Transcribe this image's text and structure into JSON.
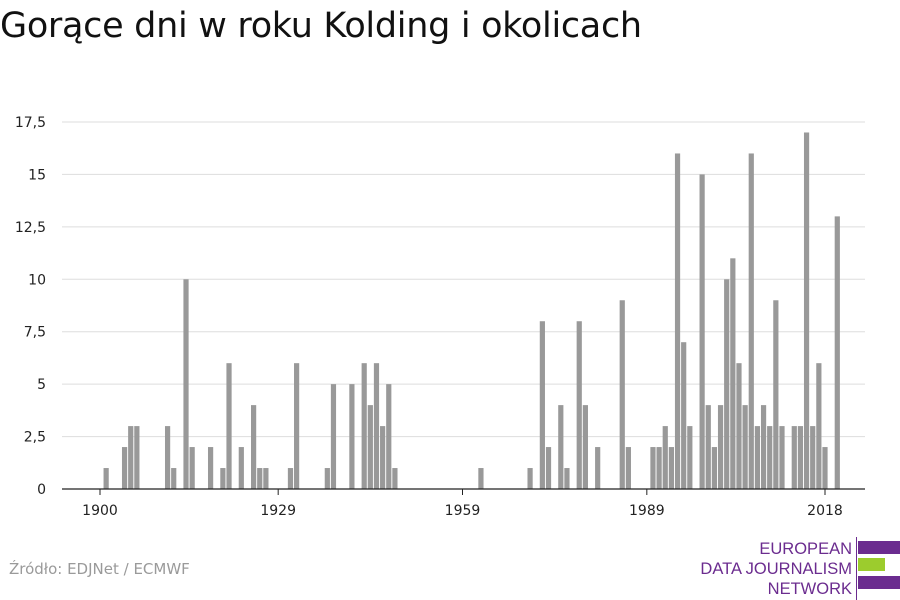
{
  "title": "Gorące dni w roku Kolding i okolicach",
  "source": "Źródło: EDJNet / ECMWF",
  "logo": {
    "lines": [
      "EUROPEAN",
      "DATA JOURNALISM",
      "NETWORK"
    ],
    "colors": {
      "purple": "#6b2c8f",
      "green": "#9ccc2d"
    }
  },
  "chart_data": {
    "type": "bar",
    "title": "Gorące dni w roku Kolding i okolicach",
    "xlabel": "",
    "ylabel": "",
    "bar_color": "#999999",
    "grid": true,
    "ylim": [
      0,
      17.5
    ],
    "yticks": [
      0,
      2.5,
      5,
      7.5,
      10,
      12.5,
      15,
      17.5
    ],
    "ytick_labels": [
      "0",
      "2,5",
      "5",
      "7,5",
      "10",
      "12,5",
      "15",
      "17,5"
    ],
    "xticks": [
      1900,
      1929,
      1959,
      1989,
      2018
    ],
    "xtick_labels": [
      "1900",
      "1929",
      "1959",
      "1989",
      "2018"
    ],
    "x": [
      1901,
      1904,
      1905,
      1906,
      1911,
      1912,
      1914,
      1915,
      1918,
      1920,
      1921,
      1923,
      1925,
      1926,
      1927,
      1931,
      1932,
      1937,
      1938,
      1941,
      1943,
      1944,
      1945,
      1946,
      1947,
      1948,
      1962,
      1970,
      1972,
      1973,
      1975,
      1976,
      1978,
      1979,
      1981,
      1985,
      1986,
      1990,
      1991,
      1992,
      1993,
      1994,
      1995,
      1996,
      1998,
      1999,
      2000,
      2001,
      2002,
      2003,
      2004,
      2005,
      2006,
      2007,
      2008,
      2009,
      2010,
      2011,
      2013,
      2014,
      2015,
      2016,
      2017,
      2018,
      2020
    ],
    "values": [
      1,
      2,
      3,
      3,
      3,
      1,
      10,
      2,
      2,
      1,
      6,
      2,
      4,
      1,
      1,
      1,
      6,
      1,
      5,
      5,
      6,
      4,
      6,
      3,
      5,
      1,
      1,
      1,
      8,
      2,
      4,
      1,
      8,
      4,
      2,
      9,
      2,
      2,
      2,
      3,
      2,
      16,
      7,
      3,
      15,
      4,
      2,
      4,
      10,
      11,
      6,
      4,
      16,
      3,
      4,
      3,
      9,
      3,
      3,
      3,
      17,
      3,
      6,
      2,
      13
    ]
  }
}
